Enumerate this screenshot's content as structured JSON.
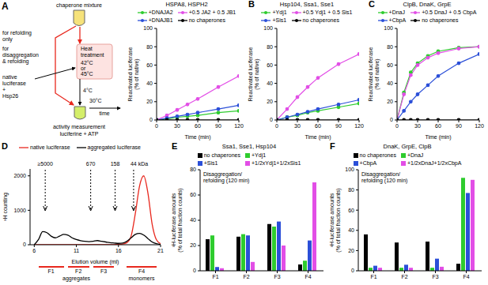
{
  "diagram": {
    "panel": "A",
    "mixture": "chaperone mixture",
    "refolding_only": [
      "for refolding",
      "only"
    ],
    "disaggregation": [
      "for",
      "disaggregation",
      "& refolding"
    ],
    "heat": [
      "Heat",
      "treatment"
    ],
    "temperatures": [
      "42°C",
      "or",
      "45°C"
    ],
    "cold": "4°C",
    "incubation": "30°C",
    "time": "time",
    "substrate": [
      "native",
      "luciferase",
      "+",
      "Hsp26"
    ],
    "measurement": [
      "activity measurement",
      "luciferine + ATP"
    ]
  },
  "chart_data": [
    {
      "type": "line",
      "title": "HSPA8, HSPH2",
      "x_label": "Time (min)",
      "y_label": "Reactivated luciferase (% of native)",
      "marker": "circle",
      "x": [
        0,
        15,
        30,
        45,
        60,
        90,
        120
      ],
      "xlim": [
        0,
        120
      ],
      "xticks": [
        0,
        30,
        60,
        90,
        120
      ],
      "ylim": [
        0,
        100
      ],
      "yticks": [
        0,
        20,
        40,
        60,
        80,
        100
      ],
      "series": [
        {
          "name": "+DNAJA2",
          "color": "#2ecc2e",
          "values": [
            0,
            1,
            3,
            4,
            5,
            8,
            10
          ]
        },
        {
          "name": "+0.5 JA2 + 0.5 JB1",
          "color": "#e24ee6",
          "values": [
            0,
            5,
            11,
            17,
            23,
            36,
            48
          ]
        },
        {
          "name": "+DNAJB1",
          "color": "#2b4fd8",
          "values": [
            0,
            2,
            4,
            6,
            8,
            12,
            16
          ]
        },
        {
          "name": "no chaperones",
          "color": "#000000",
          "values": [
            0,
            0,
            0,
            0,
            0,
            0,
            0
          ]
        }
      ]
    },
    {
      "type": "line",
      "panel": "B",
      "title": "Hsp104, Ssa1, Sse1",
      "x_label": "Time (min)",
      "y_label": "Reactivated luciferase (% of native)",
      "marker": "circle",
      "x": [
        0,
        15,
        30,
        45,
        60,
        90,
        120
      ],
      "xlim": [
        0,
        120
      ],
      "xticks": [
        0,
        30,
        60,
        90,
        120
      ],
      "ylim": [
        0,
        100
      ],
      "yticks": [
        0,
        20,
        40,
        60,
        80,
        100
      ],
      "series": [
        {
          "name": "+Ydj1",
          "color": "#2ecc2e",
          "values": [
            0,
            3,
            5,
            8,
            10,
            14,
            18
          ]
        },
        {
          "name": "+0.5 Ydj1 + 0.5 Sis1",
          "color": "#e24ee6",
          "values": [
            0,
            12,
            25,
            36,
            46,
            61,
            72
          ]
        },
        {
          "name": "+Sis1",
          "color": "#2b4fd8",
          "values": [
            0,
            3,
            6,
            9,
            12,
            17,
            22
          ]
        },
        {
          "name": "no chaperones",
          "color": "#000000",
          "values": [
            0,
            0,
            0,
            0,
            0,
            0,
            0
          ]
        }
      ]
    },
    {
      "type": "line",
      "panel": "C",
      "title": "ClpB, DnaK, GrpE",
      "x_label": "Time (min)",
      "y_label": "Reactivated luciferase (% of native)",
      "marker": "circle",
      "x": [
        0,
        10,
        20,
        30,
        45,
        60,
        90,
        120
      ],
      "xlim": [
        0,
        120
      ],
      "xticks": [
        0,
        30,
        60,
        90,
        120
      ],
      "ylim": [
        0,
        100
      ],
      "yticks": [
        0,
        20,
        40,
        60,
        80,
        100
      ],
      "series": [
        {
          "name": "+DnaJ",
          "color": "#2ecc2e",
          "values": [
            0,
            30,
            52,
            62,
            70,
            75,
            79,
            80
          ]
        },
        {
          "name": "+0.5 DnaJ + 0.5 CbpA",
          "color": "#e24ee6",
          "values": [
            0,
            28,
            49,
            60,
            68,
            73,
            78,
            80
          ]
        },
        {
          "name": "+CbpA",
          "color": "#2b4fd8",
          "values": [
            0,
            10,
            20,
            28,
            38,
            48,
            62,
            72
          ]
        },
        {
          "name": "no chaperones",
          "color": "#000000",
          "values": [
            0,
            0,
            0,
            0,
            0,
            0,
            0,
            0
          ]
        }
      ]
    },
    {
      "type": "line",
      "panel": "D",
      "x_label": "Elution volume (ml)",
      "y_label": "³H counting",
      "x": [
        6,
        6.5,
        7,
        7.5,
        8,
        8.5,
        9,
        9.5,
        10,
        10.5,
        11,
        11.5,
        12,
        12.5,
        13,
        13.5,
        14,
        14.5,
        15,
        15.5,
        16,
        16.5,
        17,
        17.5,
        18,
        18.5,
        19,
        19.5,
        20,
        20.5,
        21
      ],
      "xlim": [
        5.5,
        21
      ],
      "xticks": [
        6,
        11,
        16,
        21
      ],
      "ylim": [
        0,
        2200
      ],
      "yticks": [
        0,
        1000,
        2000
      ],
      "series": [
        {
          "name": "native luciferase",
          "color": "#e8281e",
          "values": [
            0,
            0,
            0,
            0,
            0,
            0,
            0,
            0,
            0,
            0,
            0,
            0,
            0,
            0,
            0,
            0,
            0,
            0,
            0,
            5,
            10,
            20,
            60,
            250,
            900,
            1700,
            2000,
            1500,
            600,
            150,
            30
          ]
        },
        {
          "name": "aggregated luciferase",
          "color": "#000000",
          "values": [
            0,
            150,
            380,
            350,
            250,
            200,
            250,
            300,
            280,
            200,
            150,
            120,
            100,
            90,
            100,
            120,
            100,
            80,
            60,
            50,
            40,
            50,
            100,
            200,
            300,
            330,
            280,
            180,
            80,
            30,
            10
          ]
        }
      ],
      "annotations": [
        {
          "label": "≥5000",
          "x": 7.3
        },
        {
          "label": "670",
          "x": 12.7
        },
        {
          "label": "158",
          "x": 15.6
        },
        {
          "label": "44 kDa",
          "x": 17.8
        }
      ],
      "fractions": [
        {
          "label": "F1",
          "range": [
            6.5,
            9.5
          ]
        },
        {
          "label": "F2",
          "range": [
            10,
            12.5
          ]
        },
        {
          "label": "F3",
          "range": [
            13,
            15.5
          ]
        },
        {
          "label": "F4",
          "range": [
            17,
            20.5
          ]
        }
      ],
      "fraction_groups": [
        {
          "label": "aggregates",
          "fractions": [
            "F1",
            "F2",
            "F3"
          ]
        },
        {
          "label": "monomers",
          "fractions": [
            "F4"
          ]
        }
      ]
    },
    {
      "type": "bar",
      "panel": "E",
      "title": "Ssa1, Sse1, Hsp104",
      "annotation": "Disaggregation/ refolding (120 min)",
      "y_label": "³H-luciferase amounts (% of total fraction counts)",
      "categories": [
        "F1",
        "F2",
        "F3",
        "F4"
      ],
      "ylim": [
        0,
        80
      ],
      "yticks": [
        0,
        20,
        40,
        60,
        80
      ],
      "series": [
        {
          "name": "no chaperones",
          "color": "#000000",
          "values": [
            25,
            27,
            37,
            5
          ]
        },
        {
          "name": "+Ydj1",
          "color": "#2ecc2e",
          "values": [
            28,
            29,
            35,
            8
          ]
        },
        {
          "name": "+Sis1",
          "color": "#2b4fd8",
          "values": [
            3,
            28,
            39,
            24
          ]
        },
        {
          "name": "+1/2xYdj1+1/2xSis1",
          "color": "#e24ee6",
          "values": [
            2,
            7,
            20,
            70
          ]
        }
      ]
    },
    {
      "type": "bar",
      "panel": "F",
      "title": "DnaK, GrpE, ClpB",
      "annotation": "Disaggregation/ refolding (120 min)",
      "y_label": "³H-luciferase amounts (% of total fraction counts)",
      "categories": [
        "F1",
        "F2",
        "F3",
        "F4"
      ],
      "ylim": [
        0,
        100
      ],
      "yticks": [
        0,
        20,
        40,
        60,
        80,
        100
      ],
      "series": [
        {
          "name": "no chaperones",
          "color": "#000000",
          "values": [
            36,
            28,
            29,
            7
          ]
        },
        {
          "name": "+DnaJ",
          "color": "#2ecc2e",
          "values": [
            3,
            3,
            3,
            92
          ]
        },
        {
          "name": "+CbpA",
          "color": "#2b4fd8",
          "values": [
            5,
            6,
            12,
            77
          ]
        },
        {
          "name": "+1/2xDnaJ+1/2xCbpA",
          "color": "#e24ee6",
          "values": [
            3,
            3,
            4,
            90
          ]
        }
      ]
    }
  ]
}
